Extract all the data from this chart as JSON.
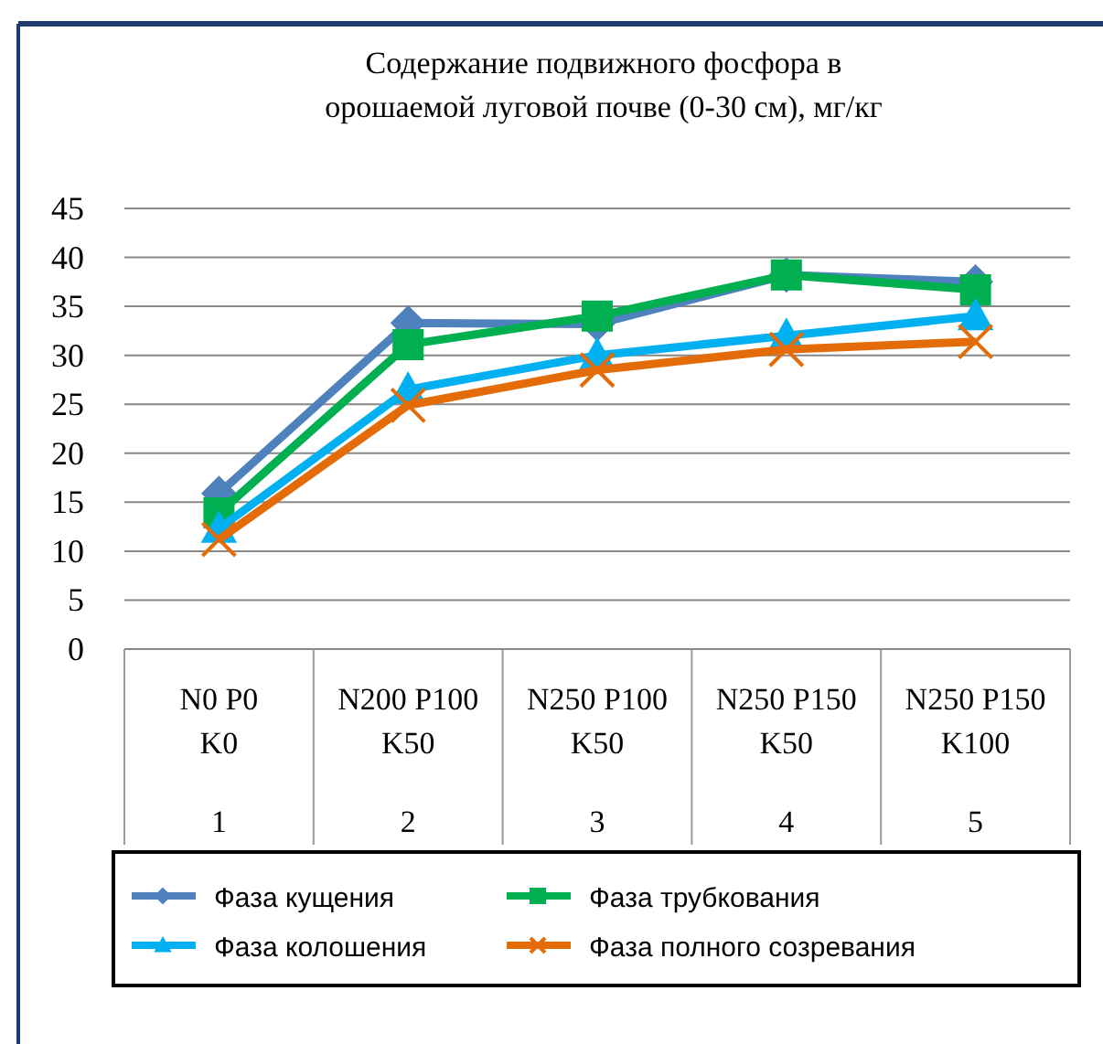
{
  "chart_data": {
    "type": "line",
    "title": "Содержание подвижного фосфора в\nорошаемой луговой почве   (0-30 см), мг/кг",
    "categories": [
      "N0 P0 K0",
      "N200 P100 K50",
      "N250 P100 K50",
      "N250 P150 K50",
      "N250 P150 K100"
    ],
    "annotations": [
      "1",
      "2",
      "3",
      "4",
      "5"
    ],
    "series": [
      {
        "name": "Фаза кущения",
        "color": "#4f81bd",
        "marker": "diamond",
        "values": [
          15.9,
          33.3,
          33.2,
          38.2,
          37.5
        ]
      },
      {
        "name": "Фаза трубкования",
        "color": "#00b050",
        "marker": "square",
        "values": [
          13.9,
          31.1,
          34,
          38.2,
          36.7
        ]
      },
      {
        "name": "Фаза колошения",
        "color": "#00b0f0",
        "marker": "triangle",
        "values": [
          12.3,
          26.5,
          30,
          32,
          34
        ]
      },
      {
        "name": "Фаза полного созревания",
        "color": "#e36c09",
        "marker": "cross",
        "values": [
          11.2,
          24.9,
          28.5,
          30.6,
          31.4
        ]
      }
    ],
    "ylim": [
      0,
      45
    ],
    "yticks": [
      0,
      5,
      10,
      15,
      20,
      25,
      30,
      35,
      40,
      45
    ],
    "grid": "y",
    "legend": "bottom"
  }
}
